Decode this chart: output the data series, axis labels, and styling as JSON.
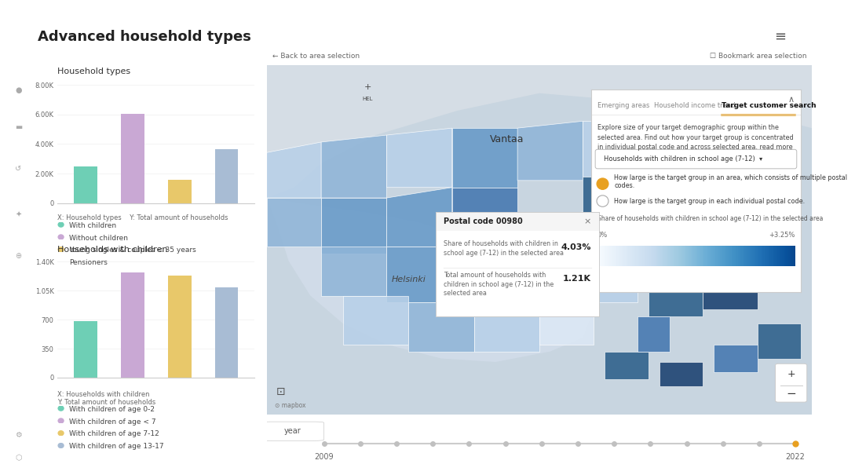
{
  "title": "Advanced household types",
  "chart1_title": "Household types",
  "chart1_values": [
    2500,
    6050,
    1580,
    3650
  ],
  "chart1_colors": [
    "#6ecfb5",
    "#c9a8d4",
    "#e8c86a",
    "#a8bcd4"
  ],
  "chart1_yticks": [
    0,
    2000,
    4000,
    6000,
    8000
  ],
  "chart1_yticklabels": [
    "0",
    "2.00K",
    "4.00K",
    "6.00K",
    "8.00K"
  ],
  "chart1_ylim": [
    0,
    8400
  ],
  "chart1_legend": [
    "With children",
    "Without children",
    "Young singles & couples < 35 years",
    "Pensioners"
  ],
  "chart2_title": "Households with children",
  "chart2_values": [
    680,
    1270,
    1230,
    1090
  ],
  "chart2_colors": [
    "#6ecfb5",
    "#c9a8d4",
    "#e8c86a",
    "#a8bcd4"
  ],
  "chart2_yticks": [
    0,
    350,
    700,
    1050,
    1400
  ],
  "chart2_yticklabels": [
    "0",
    "350",
    "700",
    "1.05K",
    "1.40K"
  ],
  "chart2_ylim": [
    0,
    1470
  ],
  "chart2_legend": [
    "With children of age 0-2",
    "With children of age < 7",
    "With children of age 7-12",
    "With children of age 13-17"
  ],
  "panel_tab1": "Emerging areas",
  "panel_tab2": "Household income trend",
  "panel_tab3": "Target customer search",
  "panel_dropdown": "Households with children in school age (7-12)",
  "panel_radio1": "How large is the target group in an area, which consists of multiple postal codes.",
  "panel_radio2": "How large is the target group in each individual postal code.",
  "panel_gradient_label": "Share of households with children in school age (7-12) in the selected area",
  "panel_gradient_left": "0%",
  "panel_gradient_right": "+3.25%",
  "popup_title": "Postal code 00980",
  "popup_row1_value": "4.03%",
  "popup_row2_value": "1.21K",
  "timeline_label": "year",
  "timeline_start": "2009",
  "timeline_end": "2022",
  "blue_shades": [
    "#dce8f5",
    "#b8d0e8",
    "#8fb5d8",
    "#6699c8",
    "#4477b0",
    "#2c5f8a",
    "#1a4070"
  ],
  "sidebar_color": "#1e1e2e",
  "highlight_color": "#2d4a6a",
  "accent_color": "#e8a020"
}
